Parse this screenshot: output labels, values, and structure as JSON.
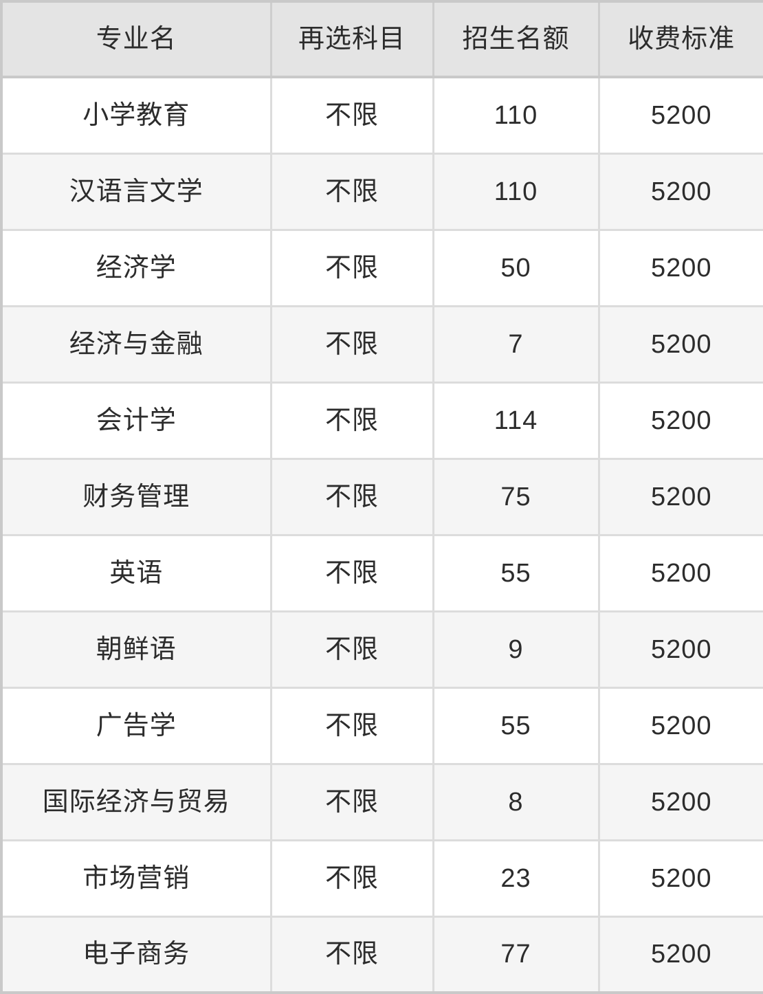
{
  "chart_data": {
    "type": "table",
    "columns": [
      "专业名",
      "再选科目",
      "招生名额",
      "收费标准"
    ],
    "rows": [
      [
        "小学教育",
        "不限",
        "110",
        "5200"
      ],
      [
        "汉语言文学",
        "不限",
        "110",
        "5200"
      ],
      [
        "经济学",
        "不限",
        "50",
        "5200"
      ],
      [
        "经济与金融",
        "不限",
        "7",
        "5200"
      ],
      [
        "会计学",
        "不限",
        "114",
        "5200"
      ],
      [
        "财务管理",
        "不限",
        "75",
        "5200"
      ],
      [
        "英语",
        "不限",
        "55",
        "5200"
      ],
      [
        "朝鲜语",
        "不限",
        "9",
        "5200"
      ],
      [
        "广告学",
        "不限",
        "55",
        "5200"
      ],
      [
        "国际经济与贸易",
        "不限",
        "8",
        "5200"
      ],
      [
        "市场营销",
        "不限",
        "23",
        "5200"
      ],
      [
        "电子商务",
        "不限",
        "77",
        "5200"
      ]
    ],
    "layout_hints": {
      "zebra_striping": true,
      "grid": true,
      "text_align": "center"
    }
  },
  "colors": {
    "header_bg": "#e4e4e4",
    "row_bg": "#ffffff",
    "row_alt_bg": "#f5f5f5",
    "border": "#dcdcdc",
    "outer_border": "#c9c9c9",
    "text": "#2c2c2c"
  }
}
